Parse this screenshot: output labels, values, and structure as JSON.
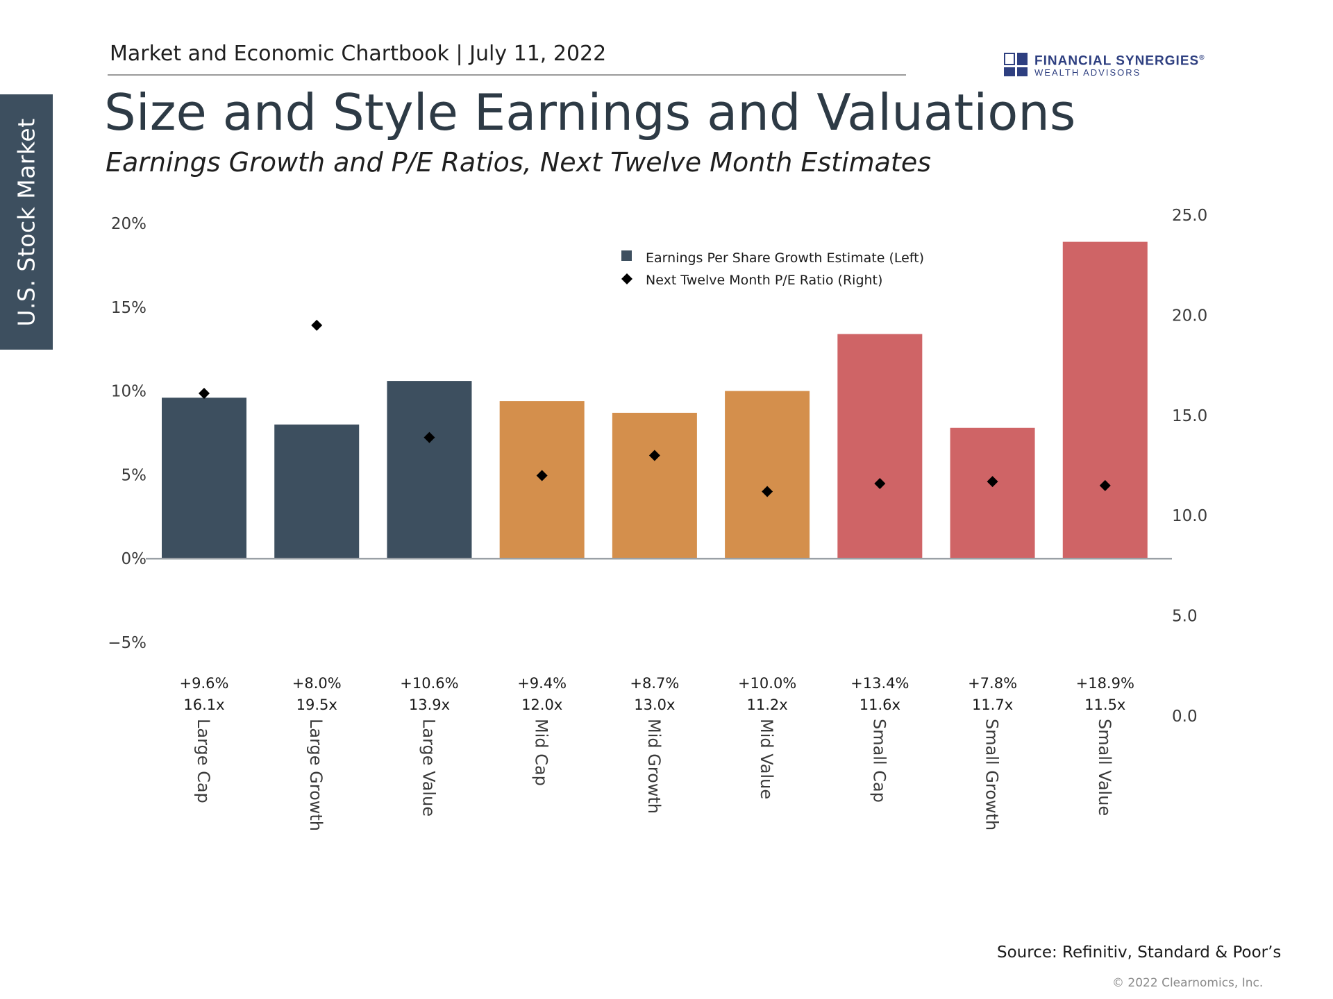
{
  "side_tab": "U.S. Stock Market",
  "header": {
    "line": "Market and Economic Chartbook | July 11, 2022",
    "title": "Size and Style Earnings and Valuations",
    "subtitle": "Earnings Growth and P/E Ratios, Next Twelve Month Estimates"
  },
  "logo": {
    "line1": "FINANCIAL SYNERGIES",
    "mark": "®",
    "line2": "WEALTH ADVISORS"
  },
  "footer": {
    "source": "Source: Refinitiv, Standard & Poor’s",
    "copyright": "© 2022 Clearnomics, Inc."
  },
  "colors": {
    "large": "#3d4f5f",
    "mid": "#d48f4c",
    "small": "#cf6466",
    "marker": "#000000",
    "axis": "#9aa0a6"
  },
  "chart_data": {
    "type": "bar",
    "categories": [
      "Large Cap",
      "Large Growth",
      "Large Value",
      "Mid Cap",
      "Mid Growth",
      "Mid Value",
      "Small Cap",
      "Small Growth",
      "Small Value"
    ],
    "groups": [
      "large",
      "large",
      "large",
      "mid",
      "mid",
      "mid",
      "small",
      "small",
      "small"
    ],
    "series": [
      {
        "name": "Earnings Per Share Growth Estimate (Left)",
        "axis": "left",
        "kind": "bar",
        "values": [
          9.6,
          8.0,
          10.6,
          9.4,
          8.7,
          10.0,
          13.4,
          7.8,
          18.9
        ]
      },
      {
        "name": "Next Twelve Month P/E Ratio (Right)",
        "axis": "right",
        "kind": "marker",
        "values": [
          16.1,
          19.5,
          13.9,
          12.0,
          13.0,
          11.2,
          11.6,
          11.7,
          11.5
        ]
      }
    ],
    "value_labels": [
      "+9.6%",
      "+8.0%",
      "+10.6%",
      "+9.4%",
      "+8.7%",
      "+10.0%",
      "+13.4%",
      "+7.8%",
      "+18.9%"
    ],
    "pe_labels": [
      "16.1x",
      "19.5x",
      "13.9x",
      "12.0x",
      "13.0x",
      "11.2x",
      "11.6x",
      "11.7x",
      "11.5x"
    ],
    "left_axis": {
      "ylim": [
        -5,
        20
      ],
      "ticks": [
        "20%",
        "15%",
        "10%",
        "5%",
        "0%",
        "−5%"
      ],
      "tick_values": [
        20,
        15,
        10,
        5,
        0,
        -5
      ]
    },
    "right_axis": {
      "ylim": [
        0,
        25
      ],
      "ticks": [
        "25.0",
        "20.0",
        "15.0",
        "10.0",
        "5.0",
        "0.0"
      ],
      "tick_values": [
        25,
        20,
        15,
        10,
        5,
        0
      ]
    },
    "legend": {
      "placement": "top-center",
      "entries": [
        "Earnings Per Share Growth Estimate (Left)",
        "Next Twelve Month P/E Ratio (Right)"
      ]
    },
    "grid": false
  }
}
